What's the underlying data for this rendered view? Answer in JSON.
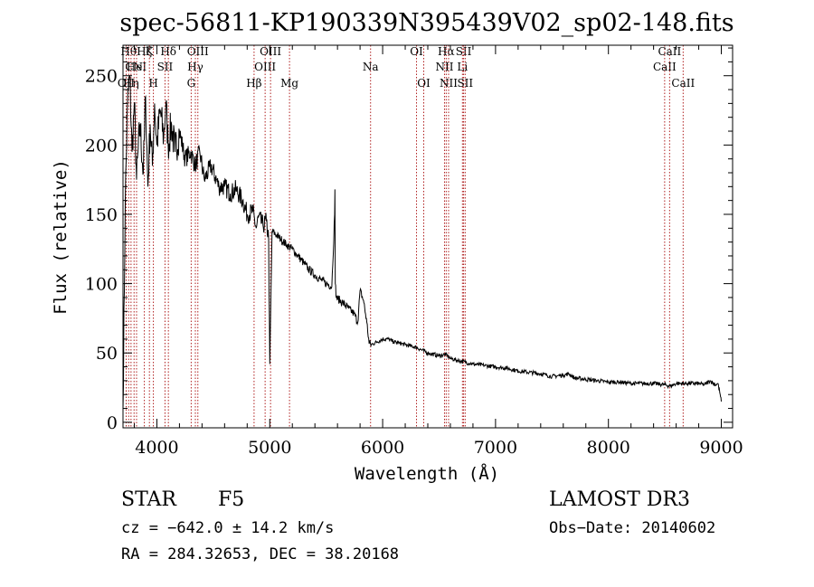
{
  "chart_data": {
    "type": "line",
    "title": "spec-56811-KP190339N395439V02_sp02-148.fits",
    "xlabel": "Wavelength (Å)",
    "ylabel": "Flux (relative)",
    "xlim": [
      3700,
      9100
    ],
    "ylim": [
      -4,
      272
    ],
    "xticks": [
      4000,
      5000,
      6000,
      7000,
      8000,
      9000
    ],
    "xtick_labels": [
      "4000",
      "5000",
      "6000",
      "7000",
      "8000",
      "9000"
    ],
    "yticks": [
      0,
      50,
      100,
      150,
      200,
      250
    ],
    "ytick_labels": [
      "0",
      "50",
      "100",
      "150",
      "200",
      "250"
    ],
    "series": [
      {
        "name": "flux",
        "x": [
          3700,
          3720,
          3740,
          3760,
          3780,
          3800,
          3820,
          3850,
          3880,
          3900,
          3920,
          3940,
          3960,
          3980,
          4000,
          4030,
          4060,
          4080,
          4100,
          4130,
          4160,
          4200,
          4250,
          4300,
          4340,
          4380,
          4420,
          4480,
          4550,
          4600,
          4650,
          4700,
          4760,
          4800,
          4850,
          4880,
          4900,
          4940,
          4970,
          4990,
          5000,
          5020,
          5060,
          5100,
          5150,
          5200,
          5250,
          5300,
          5350,
          5400,
          5450,
          5500,
          5550,
          5575,
          5577,
          5580,
          5590,
          5620,
          5650,
          5700,
          5750,
          5780,
          5800,
          5830,
          5860,
          5880,
          5900,
          5950,
          6000,
          6050,
          6100,
          6150,
          6200,
          6250,
          6300,
          6350,
          6400,
          6500,
          6560,
          6600,
          6700,
          6800,
          6900,
          7000,
          7100,
          7200,
          7300,
          7400,
          7500,
          7600,
          7650,
          7700,
          7800,
          7900,
          8000,
          8100,
          8200,
          8300,
          8400,
          8500,
          8550,
          8600,
          8700,
          8800,
          8850,
          8900,
          8950,
          8970,
          8990,
          9000
        ],
        "y": [
          10,
          160,
          230,
          250,
          195,
          230,
          175,
          215,
          180,
          235,
          170,
          215,
          185,
          230,
          200,
          225,
          205,
          230,
          200,
          215,
          195,
          210,
          190,
          195,
          185,
          195,
          175,
          185,
          170,
          170,
          165,
          168,
          160,
          150,
          152,
          140,
          148,
          142,
          145,
          132,
          42,
          138,
          135,
          132,
          128,
          125,
          120,
          115,
          110,
          106,
          103,
          100,
          98,
          150,
          168,
          100,
          90,
          88,
          86,
          82,
          78,
          72,
          95,
          88,
          72,
          57,
          56,
          58,
          60,
          60,
          58,
          57,
          56,
          55,
          54,
          52,
          50,
          48,
          49,
          46,
          44,
          42,
          41,
          40,
          39,
          37,
          36,
          35,
          33,
          34,
          35,
          32,
          31,
          30,
          29,
          29,
          28,
          28,
          28,
          27,
          26,
          28,
          28,
          28,
          27,
          30,
          27,
          28,
          20,
          15
        ]
      }
    ],
    "line_markers": [
      {
        "wavelength": 3728,
        "label": "OII",
        "row": 3
      },
      {
        "wavelength": 3750,
        "label": "Hθ",
        "row": 1
      },
      {
        "wavelength": 3771,
        "label": "Hη",
        "row": 3
      },
      {
        "wavelength": 3798,
        "label": "CN",
        "row": 2
      },
      {
        "wavelength": 3820,
        "label": "HeI",
        "row": 2
      },
      {
        "wavelength": 3889,
        "label": "Hζ",
        "row": 1
      },
      {
        "wavelength": 3934,
        "label": "K",
        "row": 1
      },
      {
        "wavelength": 3969,
        "label": "H",
        "row": 3
      },
      {
        "wavelength": 4072,
        "label": "SII",
        "row": 2
      },
      {
        "wavelength": 4102,
        "label": "Hδ",
        "row": 1
      },
      {
        "wavelength": 4304,
        "label": "G",
        "row": 3
      },
      {
        "wavelength": 4341,
        "label": "Hγ",
        "row": 2
      },
      {
        "wavelength": 4363,
        "label": "OIII",
        "row": 1
      },
      {
        "wavelength": 4861,
        "label": "Hβ",
        "row": 3
      },
      {
        "wavelength": 4959,
        "label": "OIII",
        "row": 2
      },
      {
        "wavelength": 5007,
        "label": "OIII",
        "row": 1
      },
      {
        "wavelength": 5175,
        "label": "Mg",
        "row": 3
      },
      {
        "wavelength": 5893,
        "label": "Na",
        "row": 2
      },
      {
        "wavelength": 6300,
        "label": "OI",
        "row": 1
      },
      {
        "wavelength": 6364,
        "label": "OI",
        "row": 3
      },
      {
        "wavelength": 6548,
        "label": "NII",
        "row": 2
      },
      {
        "wavelength": 6563,
        "label": "Hα",
        "row": 1
      },
      {
        "wavelength": 6584,
        "label": "NII",
        "row": 3
      },
      {
        "wavelength": 6707,
        "label": "Li",
        "row": 2
      },
      {
        "wavelength": 6717,
        "label": "SII",
        "row": 1
      },
      {
        "wavelength": 6731,
        "label": "SII",
        "row": 3
      },
      {
        "wavelength": 8498,
        "label": "CaII",
        "row": 2
      },
      {
        "wavelength": 8542,
        "label": "CaII",
        "row": 1
      },
      {
        "wavelength": 8662,
        "label": "CaII",
        "row": 3
      }
    ]
  },
  "info": {
    "class": "STAR",
    "subclass": "F5",
    "survey": "LAMOST DR3",
    "cz": "cz = −642.0 ± 14.2 km/s",
    "obs_date": "Obs−Date: 20140602",
    "coords": "RA = 284.32653, DEC =  38.20168"
  },
  "colors": {
    "axes": "#000000",
    "spectrum": "#000000",
    "line_marker": "#b02020"
  }
}
